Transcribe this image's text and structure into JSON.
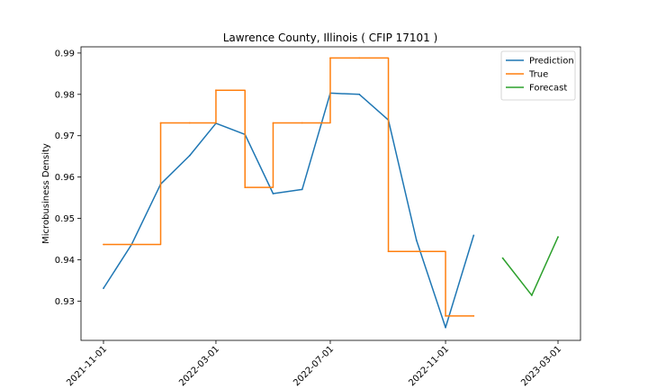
{
  "chart_data": {
    "type": "line",
    "title": "Lawrence County, Illinois ( CFIP 17101 )",
    "xlabel": "",
    "ylabel": "Microbusiness Density",
    "xlim": [
      "2021-10-08",
      "2023-03-25"
    ],
    "ylim": [
      0.9205,
      0.9915
    ],
    "x_ticks": [
      "2021-11-01",
      "2022-03-01",
      "2022-07-01",
      "2022-11-01",
      "2023-03-01"
    ],
    "y_ticks": [
      0.93,
      0.94,
      0.95,
      0.96,
      0.97,
      0.98,
      0.99
    ],
    "y_tick_labels": [
      "0.93",
      "0.94",
      "0.95",
      "0.96",
      "0.97",
      "0.98",
      "0.99"
    ],
    "grid": false,
    "legend_position": "top-right",
    "series": [
      {
        "name": "Prediction",
        "color": "#1f77b4",
        "step": false,
        "points": [
          {
            "x": "2021-11-01",
            "y": 0.9331
          },
          {
            "x": "2021-12-01",
            "y": 0.9437
          },
          {
            "x": "2022-01-01",
            "y": 0.9583
          },
          {
            "x": "2022-02-01",
            "y": 0.9652
          },
          {
            "x": "2022-03-01",
            "y": 0.973
          },
          {
            "x": "2022-04-01",
            "y": 0.9703
          },
          {
            "x": "2022-05-01",
            "y": 0.956
          },
          {
            "x": "2022-06-01",
            "y": 0.957
          },
          {
            "x": "2022-07-01",
            "y": 0.9803
          },
          {
            "x": "2022-08-01",
            "y": 0.98
          },
          {
            "x": "2022-09-01",
            "y": 0.9738
          },
          {
            "x": "2022-10-01",
            "y": 0.9447
          },
          {
            "x": "2022-11-01",
            "y": 0.9236
          },
          {
            "x": "2022-12-01",
            "y": 0.9459
          }
        ]
      },
      {
        "name": "True",
        "color": "#ff7f0e",
        "step": true,
        "points": [
          {
            "x": "2021-11-01",
            "y": 0.9437
          },
          {
            "x": "2021-12-01",
            "y": 0.9437
          },
          {
            "x": "2022-01-01",
            "y": 0.9731
          },
          {
            "x": "2022-02-01",
            "y": 0.9731
          },
          {
            "x": "2022-03-01",
            "y": 0.981
          },
          {
            "x": "2022-04-01",
            "y": 0.9575
          },
          {
            "x": "2022-05-01",
            "y": 0.9731
          },
          {
            "x": "2022-06-01",
            "y": 0.9731
          },
          {
            "x": "2022-07-01",
            "y": 0.9888
          },
          {
            "x": "2022-08-01",
            "y": 0.9888
          },
          {
            "x": "2022-09-01",
            "y": 0.942
          },
          {
            "x": "2022-10-01",
            "y": 0.942
          },
          {
            "x": "2022-11-01",
            "y": 0.9264
          },
          {
            "x": "2022-12-01",
            "y": 0.9264
          }
        ]
      },
      {
        "name": "Forecast",
        "color": "#2ca02c",
        "step": false,
        "points": [
          {
            "x": "2023-01-01",
            "y": 0.9404
          },
          {
            "x": "2023-02-01",
            "y": 0.9314
          },
          {
            "x": "2023-03-01",
            "y": 0.9455
          }
        ]
      }
    ]
  }
}
